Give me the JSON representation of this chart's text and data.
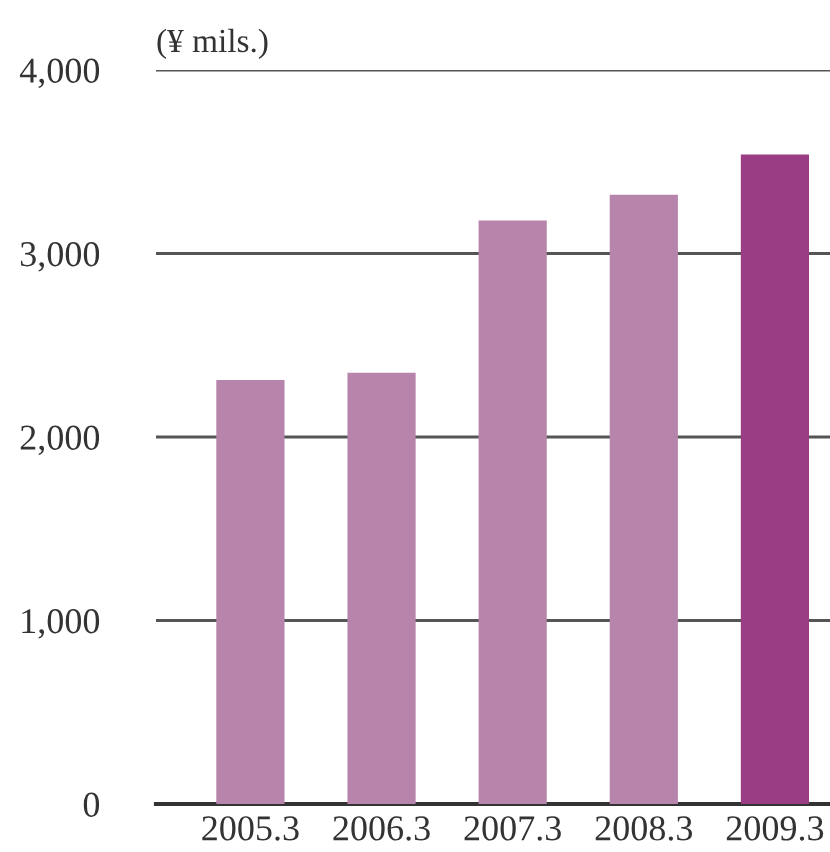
{
  "chart_data": {
    "type": "bar",
    "ylabel": "(¥ mils.)",
    "categories": [
      "2005.3",
      "2006.3",
      "2007.3",
      "2008.3",
      "2009.3"
    ],
    "values": [
      2310,
      2350,
      3180,
      3320,
      3540
    ],
    "colors": [
      "#b784ab",
      "#b784ab",
      "#b784ab",
      "#b784ab",
      "#9b3d84"
    ],
    "ylim": [
      0,
      4000
    ],
    "yticks": [
      0,
      {
        "value": 1000,
        "label": "1,000"
      },
      {
        "value": 2000,
        "label": "2,000"
      },
      {
        "value": 3000,
        "label": "3,000"
      },
      {
        "value": 4000,
        "label": "4,000"
      }
    ],
    "grid": "y"
  }
}
